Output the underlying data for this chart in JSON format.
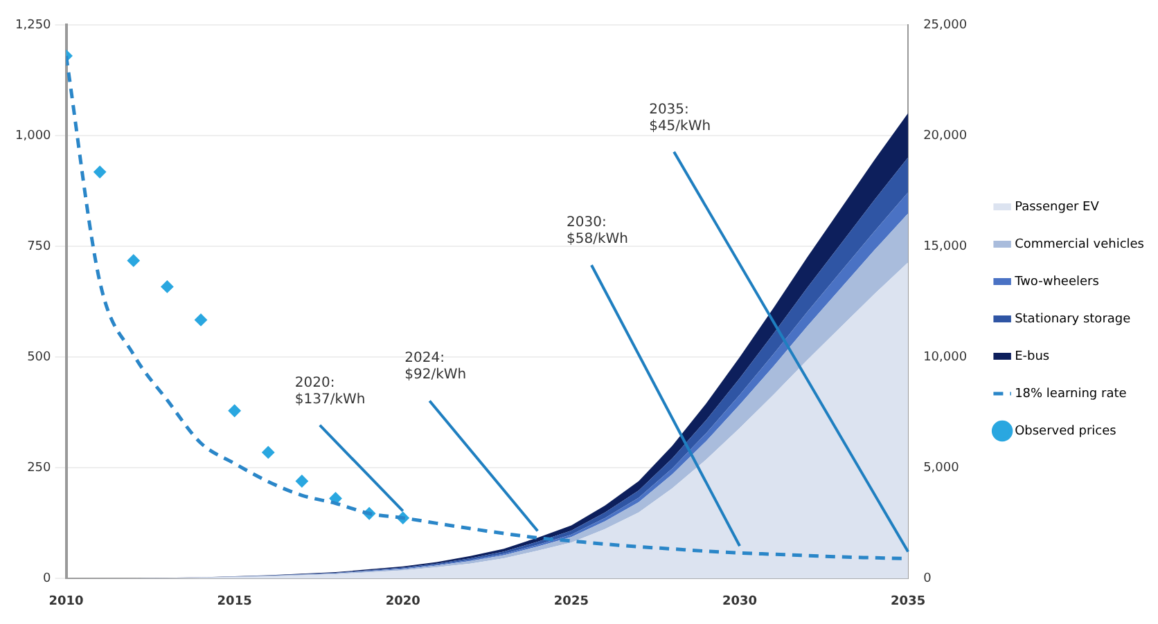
{
  "chart_data": {
    "type": "area",
    "stacked": true,
    "legend": "right",
    "grid": "y",
    "xlim": [
      2010,
      2035
    ],
    "xticks": [
      2010,
      2015,
      2020,
      2025,
      2030,
      2035
    ],
    "ylim": [
      0,
      1250
    ],
    "yticks": [
      0,
      250,
      500,
      750,
      {
        "value": 1000,
        "label": "1,000"
      },
      {
        "value": 1250,
        "label": "1,250"
      }
    ],
    "y2lim": [
      0,
      25000
    ],
    "y2ticks": [
      0,
      {
        "value": 5000,
        "label": "5,000"
      },
      {
        "value": 10000,
        "label": "10,000"
      },
      {
        "value": 15000,
        "label": "15,000"
      },
      {
        "value": 20000,
        "label": "20,000"
      },
      {
        "value": 25000,
        "label": "25,000"
      }
    ],
    "annotations": [
      {
        "text": "2020:\n$137/kWh",
        "x": 2020,
        "y": 137
      },
      {
        "text": "2024:\n$92/kWh",
        "x": 2024,
        "y": 92
      },
      {
        "text": "2030:\n$58/kWh",
        "x": 2030,
        "y": 58
      },
      {
        "text": "2035:\n$45/kWh",
        "x": 2035,
        "y": 45
      }
    ],
    "series": [
      {
        "name": "Passenger EV",
        "axis": "y2",
        "color": "#dce3f0",
        "x": [
          2010,
          2012,
          2014,
          2016,
          2018,
          2020,
          2021,
          2022,
          2023,
          2024,
          2025,
          2026,
          2027,
          2028,
          2029,
          2030,
          2031,
          2032,
          2033,
          2034,
          2035
        ],
        "values": [
          0,
          10,
          40,
          100,
          200,
          370,
          510,
          680,
          920,
          1260,
          1630,
          2240,
          2990,
          4080,
          5370,
          6800,
          8300,
          9860,
          11360,
          12850,
          14280
        ]
      },
      {
        "name": "Commercial vehicles",
        "axis": "y2",
        "color": "#a9bcdc",
        "x": [
          2010,
          2012,
          2014,
          2016,
          2018,
          2020,
          2021,
          2022,
          2023,
          2024,
          2025,
          2026,
          2027,
          2028,
          2029,
          2030,
          2031,
          2032,
          2033,
          2034,
          2035
        ],
        "values": [
          0,
          0,
          10,
          20,
          30,
          60,
          80,
          110,
          140,
          190,
          250,
          350,
          460,
          630,
          830,
          1050,
          1280,
          1520,
          1750,
          1980,
          2210
        ]
      },
      {
        "name": "Two-wheelers",
        "axis": "y2",
        "color": "#4a72c4",
        "x": [
          2010,
          2012,
          2014,
          2016,
          2018,
          2020,
          2021,
          2022,
          2023,
          2024,
          2025,
          2026,
          2027,
          2028,
          2029,
          2030,
          2031,
          2032,
          2033,
          2034,
          2035
        ],
        "values": [
          0,
          0,
          0,
          10,
          10,
          30,
          30,
          50,
          60,
          80,
          110,
          150,
          200,
          270,
          360,
          450,
          550,
          650,
          750,
          850,
          950
        ]
      },
      {
        "name": "Stationary storage",
        "axis": "y2",
        "color": "#2f55a4",
        "x": [
          2010,
          2012,
          2014,
          2016,
          2018,
          2020,
          2021,
          2022,
          2023,
          2024,
          2025,
          2026,
          2027,
          2028,
          2029,
          2030,
          2031,
          2032,
          2033,
          2034,
          2035
        ],
        "values": [
          0,
          0,
          0,
          10,
          20,
          40,
          60,
          80,
          100,
          140,
          180,
          250,
          330,
          450,
          590,
          750,
          920,
          1090,
          1250,
          1420,
          1580
        ]
      },
      {
        "name": "E-bus",
        "axis": "y2",
        "color": "#0d1f5c",
        "x": [
          2010,
          2012,
          2014,
          2016,
          2018,
          2020,
          2021,
          2022,
          2023,
          2024,
          2025,
          2026,
          2027,
          2028,
          2029,
          2030,
          2031,
          2032,
          2033,
          2034,
          2035
        ],
        "values": [
          0,
          0,
          10,
          10,
          30,
          50,
          70,
          100,
          130,
          180,
          230,
          310,
          420,
          570,
          750,
          950,
          1160,
          1380,
          1590,
          1800,
          2000
        ]
      },
      {
        "name": "Observed prices",
        "type": "scatter",
        "axis": "y",
        "color": "#2aa7e0",
        "marker": "diamond",
        "x": [
          2010,
          2011,
          2012,
          2013,
          2014,
          2015,
          2016,
          2017,
          2018,
          2019,
          2020
        ],
        "values": [
          1180,
          918,
          718,
          659,
          584,
          379,
          285,
          220,
          181,
          147,
          137
        ]
      },
      {
        "name": "18% learning rate",
        "type": "line",
        "axis": "y",
        "color": "#2a86c8",
        "line_style": "dashed",
        "marker": "none",
        "x": [
          2010,
          2011,
          2012,
          2013,
          2014,
          2015,
          2016,
          2017,
          2018,
          2019,
          2020,
          2021,
          2022,
          2023,
          2024,
          2025,
          2026,
          2027,
          2028,
          2029,
          2030,
          2031,
          2032,
          2033,
          2034,
          2035
        ],
        "values": [
          1180,
          670,
          506,
          403,
          306,
          260,
          219,
          188,
          170,
          147,
          137,
          125,
          113,
          102,
          92,
          85,
          78,
          72,
          67,
          62,
          58,
          55,
          52,
          49,
          47,
          45
        ]
      }
    ]
  }
}
